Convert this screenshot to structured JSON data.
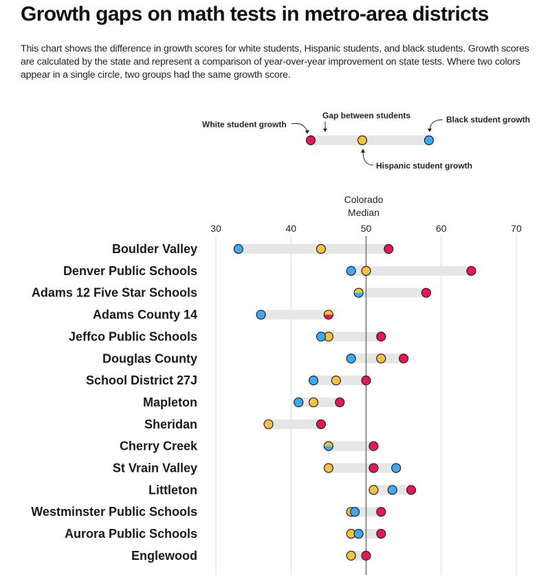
{
  "title": "Growth gaps on math tests in metro-area districts",
  "description": "This chart shows the difference in growth scores for white students, Hispanic students, and black students. Growth scores are calculated by the state and represent a comparison of year-over-year improvement on state tests. Where two colors appear in a single circle, two groups had the same growth score.",
  "colors": {
    "white": "#E8174F",
    "hispanic": "#F5C242",
    "black": "#3FA9F5",
    "gap_bar": "#E6E6E6",
    "gridline": "#D9D9D9",
    "median_line": "#777777"
  },
  "legend": {
    "white_label": "White student growth",
    "gap_label": "Gap between students",
    "black_label": "Black student growth",
    "hispanic_label": "Hispanic student growth"
  },
  "chart_data": {
    "type": "dot-range",
    "title": "Growth gaps on math tests in metro-area districts",
    "xlabel": "",
    "ylabel": "",
    "xlim": [
      30,
      70
    ],
    "x_ticks": [
      "30",
      "40",
      "50",
      "60",
      "70"
    ],
    "x_tick_values": [
      30,
      40,
      50,
      60,
      70
    ],
    "grid": true,
    "reference_line": {
      "value": 50,
      "label_line1": "Colorado",
      "label_line2": "Median"
    },
    "series_names": [
      "White student growth",
      "Hispanic student growth",
      "Black student growth"
    ],
    "categories": [
      "Boulder Valley",
      "Denver Public Schools",
      "Adams 12 Five Star Schools",
      "Adams County 14",
      "Jeffco Public Schools",
      "Douglas County",
      "School District 27J",
      "Mapleton",
      "Sheridan",
      "Cherry Creek",
      "St Vrain Valley",
      "Littleton",
      "Westminster Public Schools",
      "Aurora Public Schools",
      "Englewood"
    ],
    "series": [
      {
        "name": "White",
        "key": "white",
        "values": [
          53,
          64,
          58,
          45,
          52,
          55,
          50,
          46.5,
          44,
          51,
          51,
          56,
          52,
          52,
          50
        ]
      },
      {
        "name": "Hispanic",
        "key": "hispanic",
        "values": [
          44,
          50,
          49,
          45,
          45,
          52,
          46,
          43,
          37,
          45,
          45,
          51,
          48,
          48,
          48
        ]
      },
      {
        "name": "Black",
        "key": "black",
        "values": [
          33,
          48,
          49,
          36,
          44,
          48,
          43,
          41,
          null,
          45,
          54,
          53.5,
          48.5,
          49,
          null
        ]
      }
    ]
  }
}
